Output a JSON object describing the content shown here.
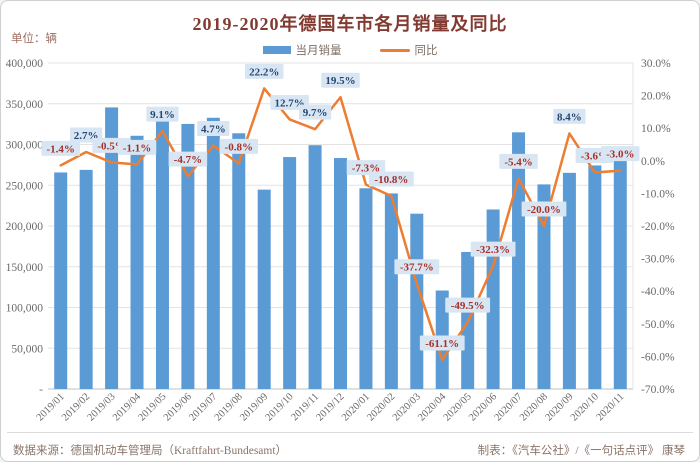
{
  "title": "2019-2020年德国车市各月销量及同比",
  "unit_label": "单位：辆",
  "legend": {
    "bar_label": "当月销量",
    "line_label": "同比"
  },
  "footer": {
    "source": "数据来源：德国机动车管理局（Kraftfahrt-Bundesamt）",
    "credit": "制表：《汽车公社》/《一句话点评》 康琴"
  },
  "colors": {
    "bar": "#5B9BD5",
    "line": "#ED7D31",
    "label_bg": "#D8E6F4",
    "label_pos_text": "#25466F",
    "label_neg_text": "#A5302A",
    "title_text": "#823B32",
    "unit_text": "#9E6F63",
    "axis_text": "#696969",
    "footer_text": "#8B7468",
    "grid": "#E3E3E3",
    "axis_line": "#C0C0C0"
  },
  "chart_data": {
    "type": "bar+line combo",
    "categories": [
      "2019/01",
      "2019/02",
      "2019/03",
      "2019/04",
      "2019/05",
      "2019/06",
      "2019/07",
      "2019/08",
      "2019/09",
      "2019/10",
      "2019/11",
      "2019/12",
      "2020/01",
      "2020/02",
      "2020/03",
      "2020/04",
      "2020/05",
      "2020/06",
      "2020/07",
      "2020/08",
      "2020/09",
      "2020/10",
      "2020/11"
    ],
    "series": [
      {
        "name": "当月销量",
        "type": "bar",
        "axis": "left",
        "values": [
          265702,
          268867,
          345523,
          310715,
          332962,
          325231,
          332788,
          313748,
          244622,
          284593,
          299127,
          283380,
          246300,
          239943,
          215119,
          120840,
          168148,
          220272,
          314938,
          251044,
          265227,
          274303,
          290150
        ]
      },
      {
        "name": "同比",
        "type": "line",
        "axis": "right",
        "unit": "%",
        "values": [
          -1.4,
          2.7,
          -0.5,
          -1.1,
          9.1,
          -4.7,
          4.7,
          -0.8,
          22.2,
          12.7,
          9.7,
          19.5,
          -7.3,
          -10.8,
          -37.7,
          -61.1,
          -49.5,
          -32.3,
          -5.4,
          -20.0,
          8.4,
          -3.6,
          -3.0
        ]
      }
    ],
    "left_axis": {
      "min": 0,
      "max": 400000,
      "step": 50000,
      "ticks": [
        "400,000",
        "350,000",
        "300,000",
        "250,000",
        "200,000",
        "150,000",
        "100,000",
        "50,000",
        "-"
      ]
    },
    "right_axis": {
      "min": -70,
      "max": 30,
      "step": 10,
      "ticks": [
        "30.0%",
        "20.0%",
        "10.0%",
        "0.0%",
        "-10.0%",
        "-20.0%",
        "-30.0%",
        "-40.0%",
        "-50.0%",
        "-60.0%",
        "-70.0%"
      ]
    },
    "grid": true,
    "legend_position": "top"
  }
}
